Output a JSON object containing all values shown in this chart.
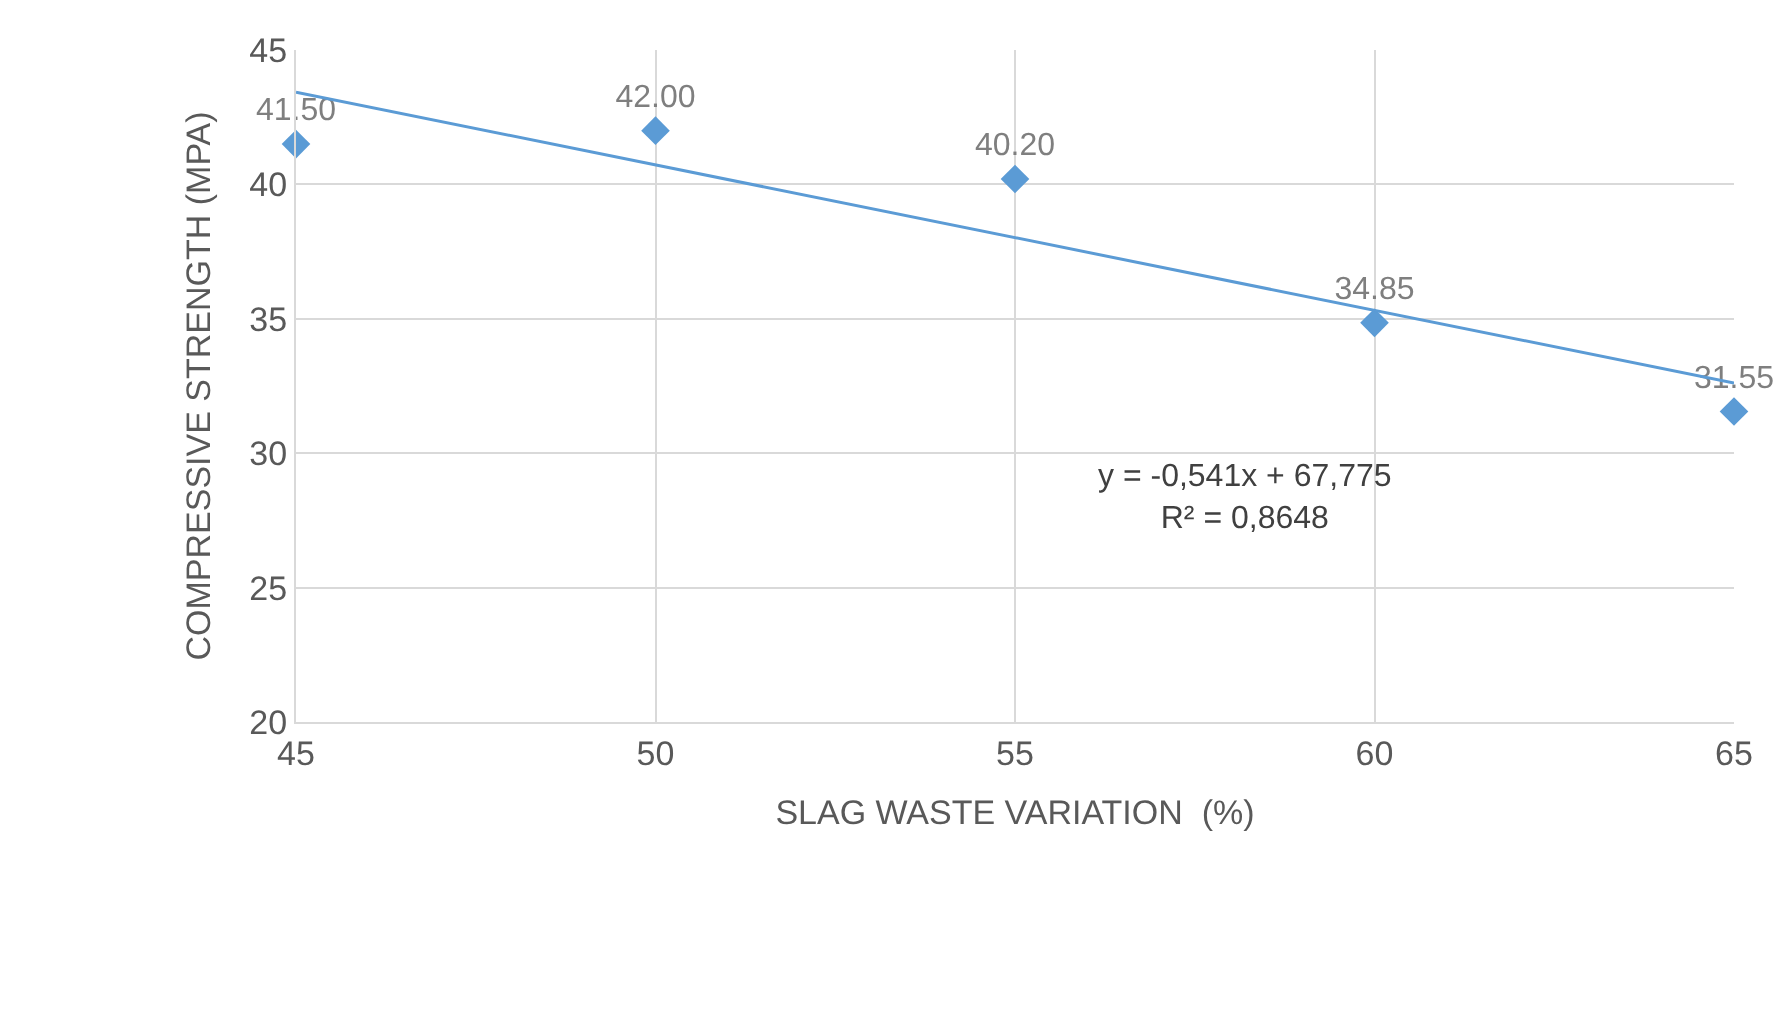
{
  "chart_data": {
    "type": "scatter",
    "xlabel": "SLAG WASTE VARIATION  (%)",
    "ylabel": "COMPRESSIVE STRENGTH (MPA)",
    "x": [
      45,
      50,
      55,
      60,
      65
    ],
    "series": [
      {
        "color": "#5b9bd5",
        "values": [
          41.5,
          42.0,
          40.2,
          34.85,
          31.55
        ],
        "value_labels": [
          "41.50",
          "42.00",
          "40.20",
          "34.85",
          "31.55"
        ],
        "marker": "diamond"
      },
      {
        "type": "line",
        "color": "#5b9bd5",
        "x": [
          45,
          65
        ],
        "values": [
          43.43,
          32.61
        ],
        "marker": "none",
        "line_style": "solid"
      }
    ],
    "annotations": [
      "y = -0,541x + 67,775",
      "R² = 0,8648"
    ],
    "xlim": [
      45,
      65
    ],
    "xticks": [
      45,
      50,
      55,
      60,
      65
    ],
    "ylim": [
      20,
      45
    ],
    "yticks": [
      20,
      25,
      30,
      35,
      40,
      45
    ],
    "grid": true
  }
}
